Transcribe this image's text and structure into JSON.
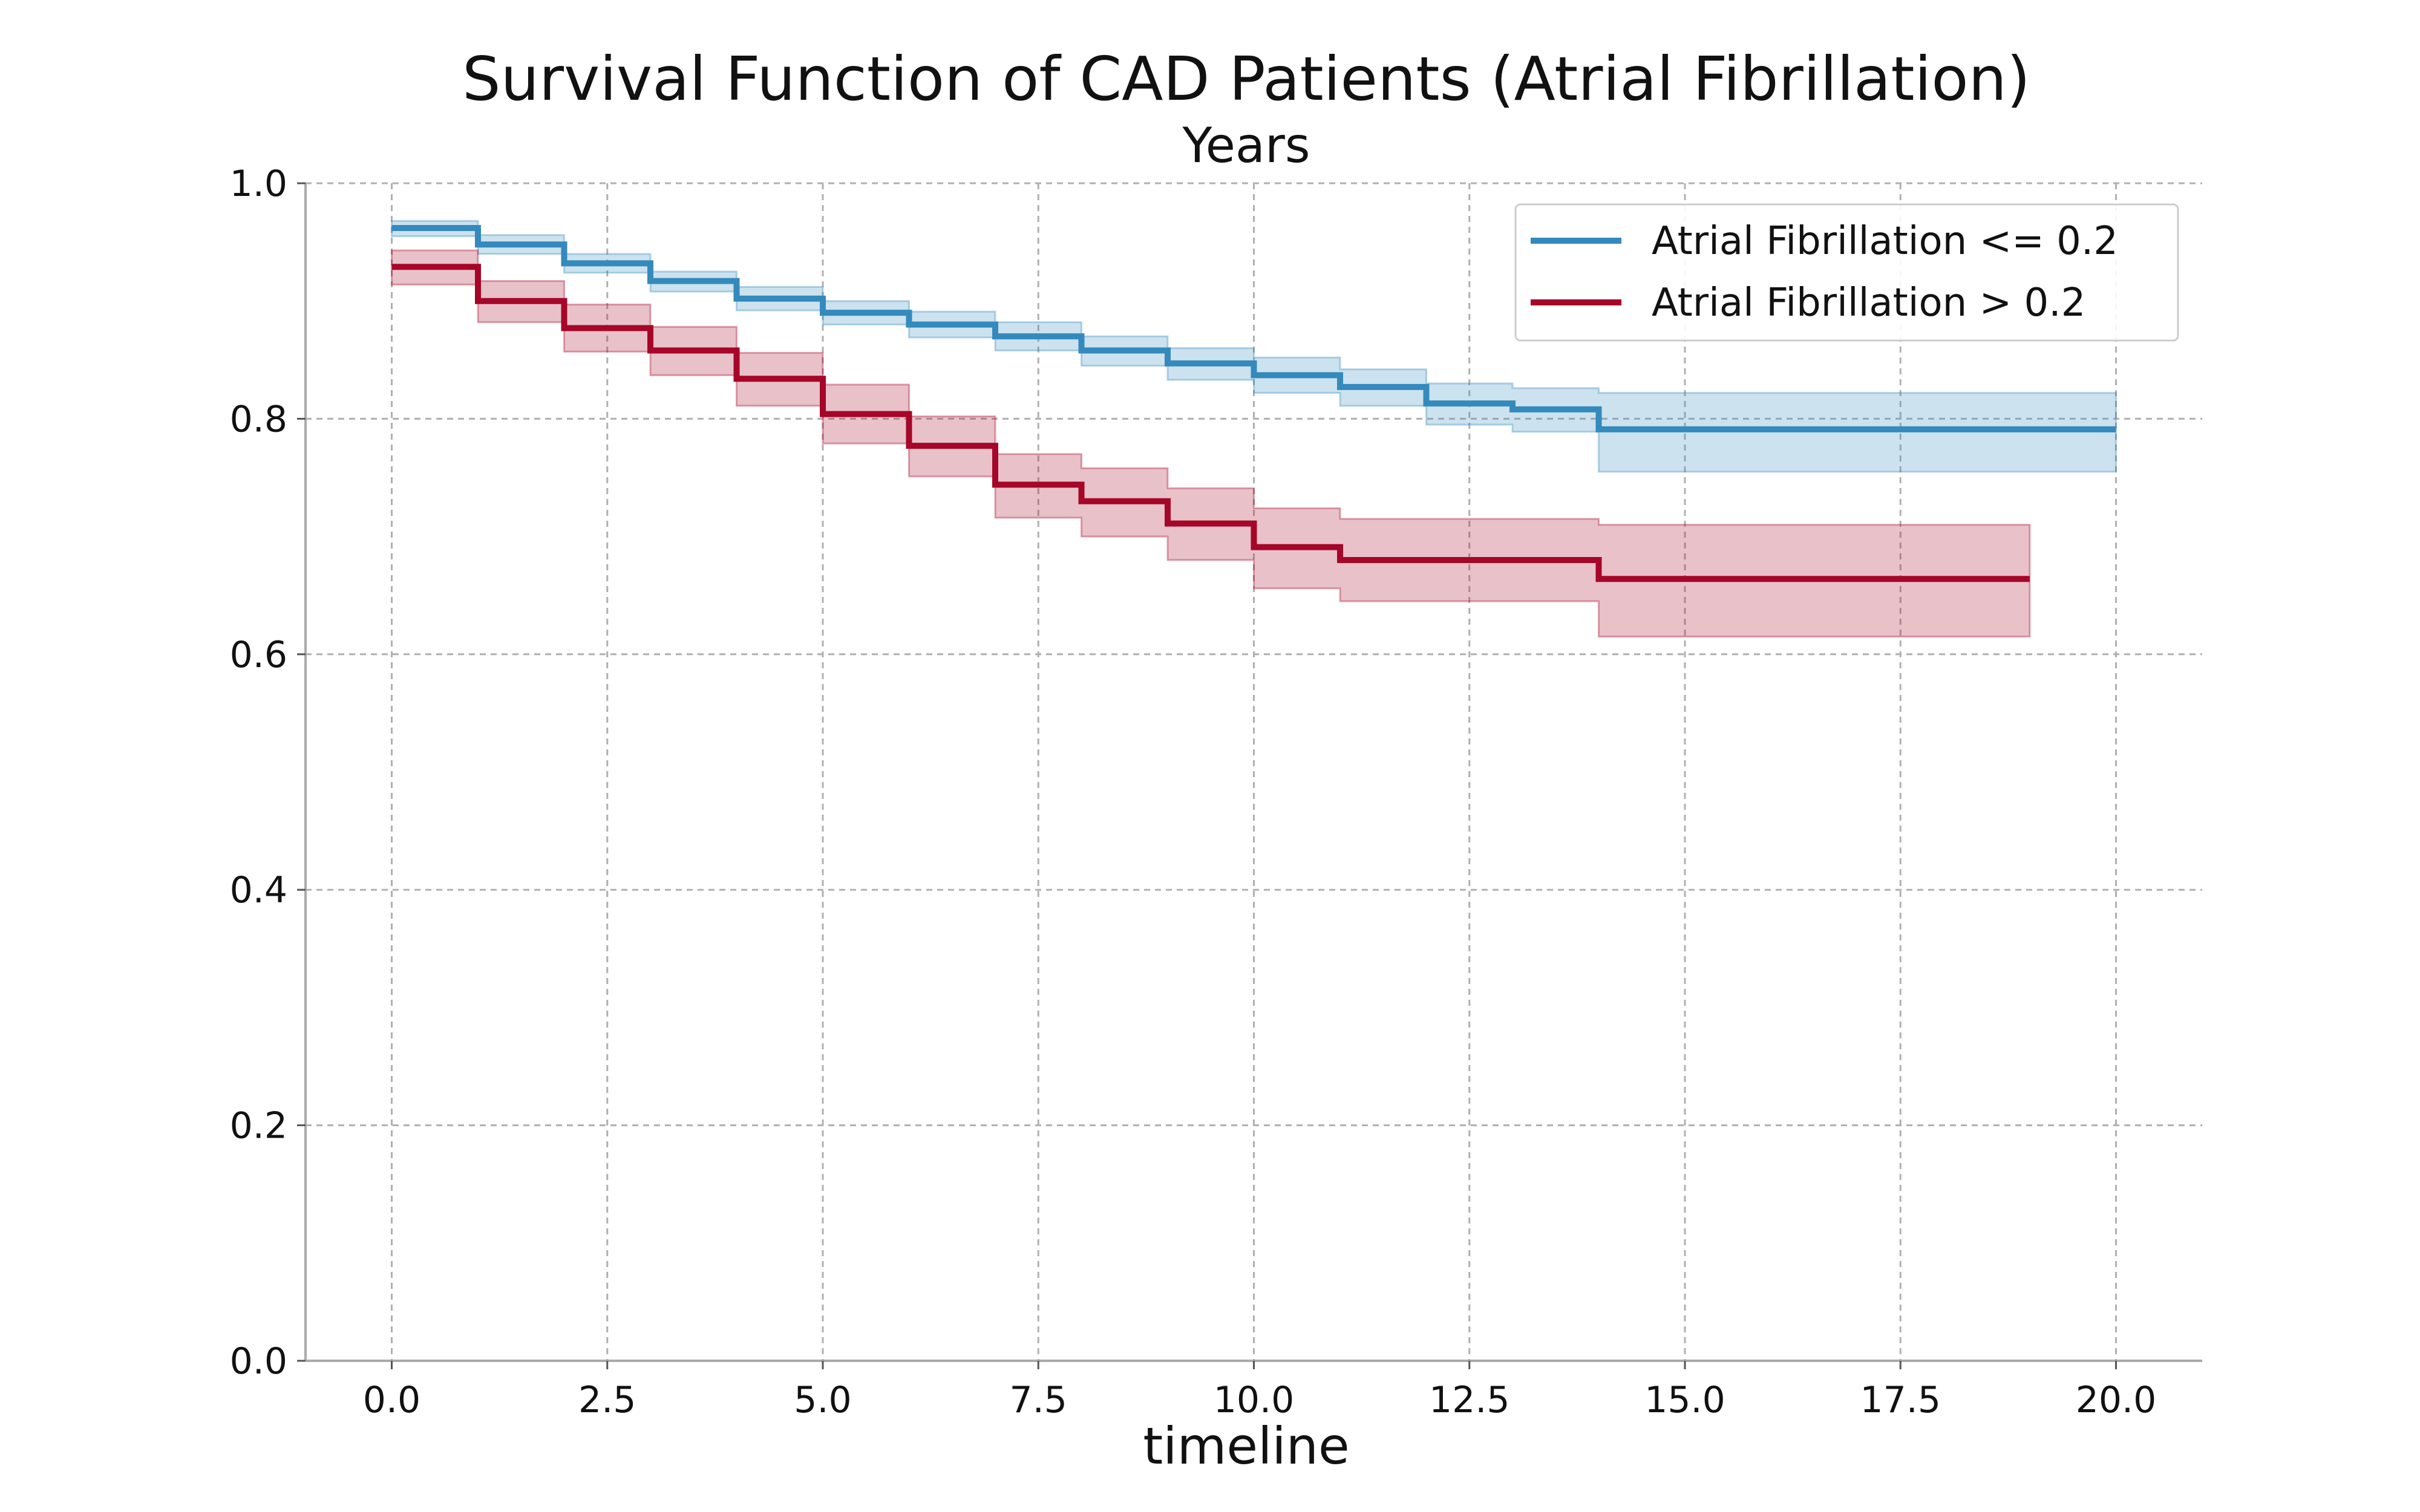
{
  "chart_data": {
    "type": "line",
    "step": true,
    "title": "Survival Function of CAD Patients (Atrial Fibrillation)",
    "subtitle": "Years",
    "xlabel": "timeline",
    "ylabel": "",
    "xlim": [
      -1,
      21
    ],
    "ylim": [
      0,
      1.0
    ],
    "xticks": [
      "0.0",
      "2.5",
      "5.0",
      "7.5",
      "10.0",
      "12.5",
      "15.0",
      "17.5",
      "20.0"
    ],
    "xtick_values": [
      0,
      2.5,
      5,
      7.5,
      10,
      12.5,
      15,
      17.5,
      20
    ],
    "yticks": [
      "0.0",
      "0.2",
      "0.4",
      "0.6",
      "0.8",
      "1.0"
    ],
    "ytick_values": [
      0,
      0.2,
      0.4,
      0.6,
      0.8,
      1.0
    ],
    "grid": true,
    "legend_position": "top-right",
    "series": [
      {
        "name": "Atrial Fibrillation <= 0.2",
        "color": "#348abd",
        "x": [
          0,
          1,
          2,
          3,
          4,
          5,
          6,
          7,
          8,
          9,
          10,
          11,
          12,
          13,
          14,
          20
        ],
        "y": [
          0.962,
          0.948,
          0.932,
          0.917,
          0.902,
          0.89,
          0.88,
          0.87,
          0.858,
          0.847,
          0.837,
          0.827,
          0.813,
          0.808,
          0.791,
          0.791
        ],
        "ci_lower": [
          0.955,
          0.94,
          0.924,
          0.908,
          0.892,
          0.88,
          0.869,
          0.858,
          0.845,
          0.833,
          0.822,
          0.811,
          0.795,
          0.789,
          0.755,
          0.755
        ],
        "ci_upper": [
          0.968,
          0.956,
          0.94,
          0.925,
          0.912,
          0.9,
          0.891,
          0.882,
          0.87,
          0.86,
          0.852,
          0.842,
          0.83,
          0.826,
          0.822,
          0.822
        ]
      },
      {
        "name": "Atrial Fibrillation > 0.2",
        "color": "#a60628",
        "x": [
          0,
          1,
          2,
          3,
          4,
          5,
          6,
          7,
          8,
          9,
          10,
          11,
          14,
          19
        ],
        "y": [
          0.929,
          0.9,
          0.877,
          0.858,
          0.834,
          0.804,
          0.777,
          0.744,
          0.73,
          0.711,
          0.691,
          0.68,
          0.664,
          0.664
        ],
        "ci_lower": [
          0.914,
          0.882,
          0.857,
          0.837,
          0.811,
          0.779,
          0.751,
          0.716,
          0.7,
          0.68,
          0.656,
          0.645,
          0.615,
          0.615
        ],
        "ci_upper": [
          0.943,
          0.917,
          0.897,
          0.878,
          0.856,
          0.829,
          0.802,
          0.77,
          0.758,
          0.741,
          0.724,
          0.715,
          0.71,
          0.71
        ]
      }
    ]
  }
}
